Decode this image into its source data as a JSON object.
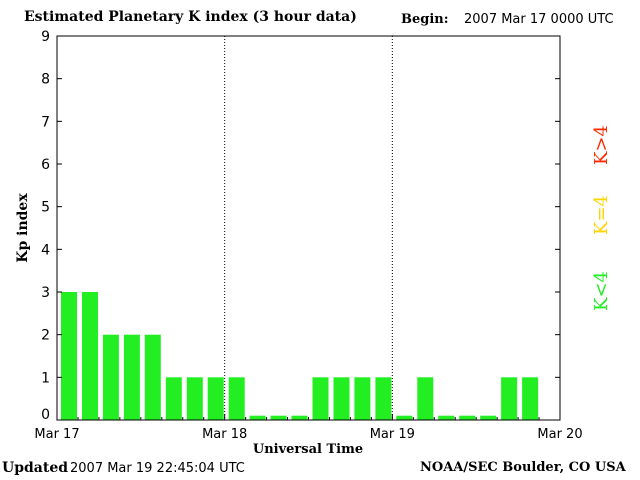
{
  "header": {
    "title": "Estimated Planetary K index (3 hour data)",
    "begin_label": "Begin:",
    "begin_value": "2007 Mar 17 0000 UTC"
  },
  "footer": {
    "updated_label": "Updated",
    "updated_value": "2007 Mar 19 22:45:04 UTC",
    "org": "NOAA/SEC Boulder, CO USA"
  },
  "legend": [
    {
      "label": "K>4",
      "color": "#ff2a00"
    },
    {
      "label": "K=4",
      "color": "#ffd400"
    },
    {
      "label": "K<4",
      "color": "#22ee22"
    }
  ],
  "chart_data": {
    "type": "bar",
    "title": "Estimated Planetary K index (3 hour data)",
    "xlabel": "Universal Time",
    "ylabel": "Kp index",
    "ylim": [
      0,
      9
    ],
    "yticks": [
      "0",
      "1",
      "2",
      "3",
      "4",
      "5",
      "6",
      "7",
      "8",
      "9"
    ],
    "xticks": [
      "Mar 17",
      "Mar 18",
      "Mar 19",
      "Mar 20"
    ],
    "bar_color": "#22ee22",
    "values": [
      3,
      3,
      2,
      2,
      2,
      1,
      1,
      1,
      1,
      0.1,
      0.1,
      0.1,
      1,
      1,
      1,
      1,
      0.1,
      1,
      0.1,
      0.1,
      0.1,
      1,
      1,
      null
    ],
    "grid": "dotted vertical lines at day boundaries",
    "legend_placement": "right"
  }
}
